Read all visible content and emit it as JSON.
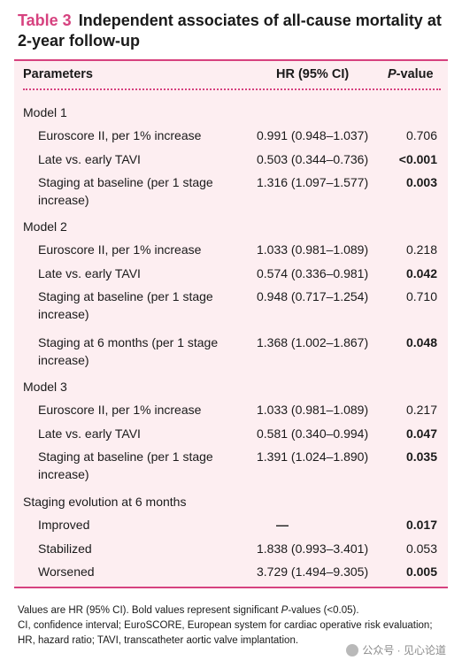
{
  "title": {
    "tag": "Table 3",
    "text": "Independent associates of all-cause mortality at 2-year follow-up"
  },
  "header": {
    "parameters": "Parameters",
    "hr": "HR (95% CI)",
    "pvalue_italic": "P",
    "pvalue_rest": "-value"
  },
  "rows": [
    {
      "label": "Model 1",
      "type": "group"
    },
    {
      "label": "Euroscore II, per 1% increase",
      "hr": "0.991 (0.948–1.037)",
      "p": "0.706",
      "bold": false
    },
    {
      "label": "Late vs. early TAVI",
      "hr": "0.503 (0.344–0.736)",
      "p": "<0.001",
      "bold": true
    },
    {
      "label": "Staging at baseline (per 1 stage",
      "label2": "increase)",
      "hr": "1.316 (1.097–1.577)",
      "p": "0.003",
      "bold": true
    },
    {
      "label": "Model 2",
      "type": "group"
    },
    {
      "label": "Euroscore II, per 1% increase",
      "hr": "1.033 (0.981–1.089)",
      "p": "0.218",
      "bold": false
    },
    {
      "label": "Late vs. early TAVI",
      "hr": "0.574 (0.336–0.981)",
      "p": "0.042",
      "bold": true
    },
    {
      "label": "Staging at baseline (per 1 stage",
      "label2": "increase)",
      "hr": "0.948 (0.717–1.254)",
      "p": "0.710",
      "bold": false
    },
    {
      "label": "Staging at 6 months (per 1 stage",
      "label2": "increase)",
      "hr": "1.368 (1.002–1.867)",
      "p": "0.048",
      "bold": true
    },
    {
      "label": "Model 3",
      "type": "group"
    },
    {
      "label": "Euroscore II, per 1% increase",
      "hr": "1.033 (0.981–1.089)",
      "p": "0.217",
      "bold": false
    },
    {
      "label": "Late vs. early TAVI",
      "hr": "0.581 (0.340–0.994)",
      "p": "0.047",
      "bold": true
    },
    {
      "label": "Staging at baseline (per 1 stage",
      "label2": "increase)",
      "hr": "1.391 (1.024–1.890)",
      "p": "0.035",
      "bold": true
    },
    {
      "label": "Staging evolution at 6 months",
      "type": "group"
    },
    {
      "label": "Improved",
      "hr": "—",
      "p": "0.017",
      "bold": true
    },
    {
      "label": "Stabilized",
      "hr": "1.838 (0.993–3.401)",
      "p": "0.053",
      "bold": false
    },
    {
      "label": "Worsened",
      "hr": "3.729 (1.494–9.305)",
      "p": "0.005",
      "bold": true
    }
  ],
  "footnote": {
    "line1_pre": "Values are HR (95% CI). Bold values represent significant ",
    "line1_italic": "P",
    "line1_post": "-values (<0.05).",
    "line2": "CI, confidence interval; EuroSCORE, European system for cardiac operative risk evaluation; HR, hazard ratio; TAVI, transcatheter aortic valve implantation."
  },
  "watermark": "公众号 · 见心论道"
}
